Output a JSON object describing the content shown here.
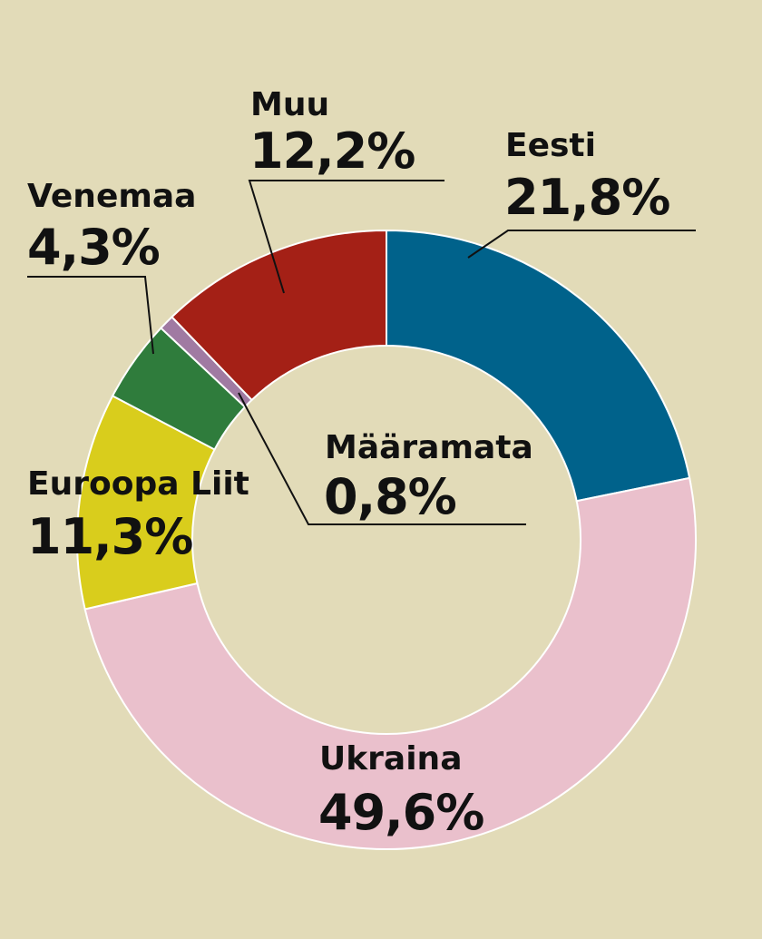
{
  "chart_data": {
    "type": "pie",
    "style": "donut",
    "slices": [
      {
        "name": "Eesti",
        "value": 21.8,
        "label": "21,8%",
        "color": "#00628b"
      },
      {
        "name": "Ukraina",
        "value": 49.6,
        "label": "49,6%",
        "color": "#eac0cc"
      },
      {
        "name": "Euroopa Liit",
        "value": 11.3,
        "label": "11,3%",
        "color": "#d9cd1c"
      },
      {
        "name": "Venemaa",
        "value": 4.3,
        "label": "4,3%",
        "color": "#2f7c3c"
      },
      {
        "name": "Määramata",
        "value": 0.8,
        "label": "0,8%",
        "color": "#a07aa2"
      },
      {
        "name": "Muu",
        "value": 12.2,
        "label": "12,2%",
        "color": "#a42016"
      }
    ],
    "start": "12 o'clock",
    "direction": "clockwise",
    "legend": "none"
  }
}
